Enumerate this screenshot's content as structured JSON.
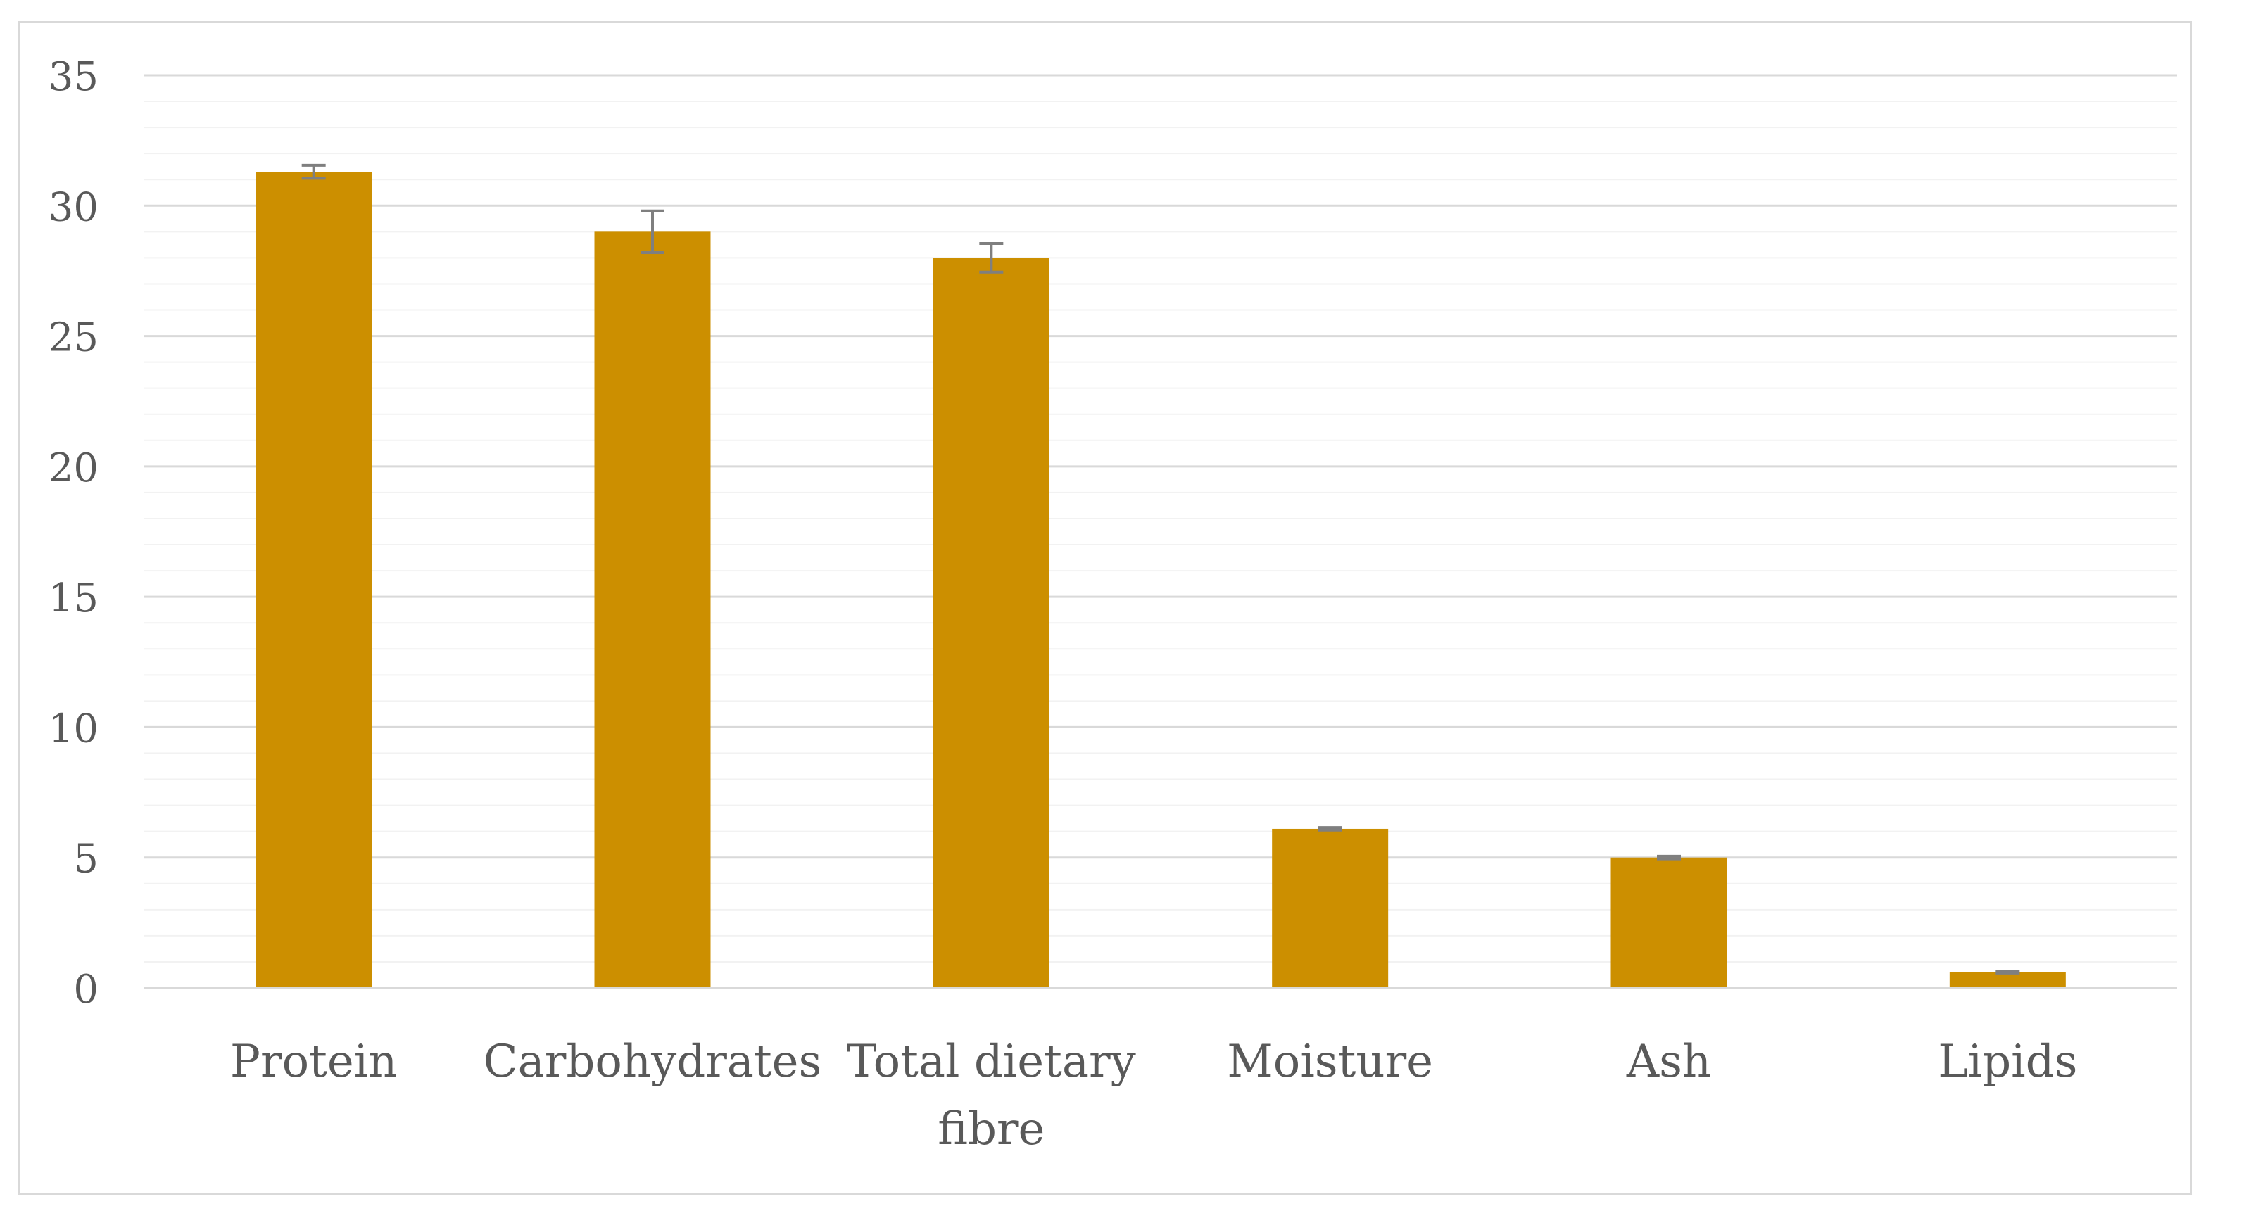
{
  "chart_data": {
    "type": "bar",
    "title": "",
    "xlabel": "",
    "ylabel": "",
    "ylim": [
      0,
      35
    ],
    "y_major_step": 5,
    "y_minor_step": 1,
    "grid": true,
    "legend": "none",
    "bar_color": "#CC8F00",
    "error_bar_color": "#7f7f7f",
    "major_grid_color": "#d9d9d9",
    "minor_grid_color": "#f2f2f2",
    "axis_color": "#d9d9d9",
    "tick_label_color": "#595959",
    "categories": [
      [
        "Protein"
      ],
      [
        "Carbohydrates"
      ],
      [
        "Total dietary",
        "fibre"
      ],
      [
        "Moisture"
      ],
      [
        "Ash"
      ],
      [
        "Lipids"
      ]
    ],
    "values": [
      31.3,
      29.0,
      28.0,
      6.1,
      5.0,
      0.6
    ],
    "errors": [
      0.25,
      0.8,
      0.55,
      0.05,
      0.05,
      0.03
    ],
    "y_ticks": [
      "0",
      "5",
      "10",
      "15",
      "20",
      "25",
      "30",
      "35"
    ]
  }
}
